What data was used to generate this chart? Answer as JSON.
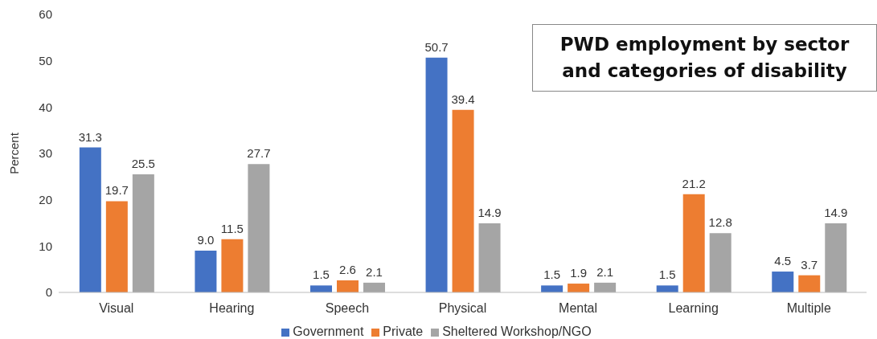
{
  "chart_data": {
    "type": "bar",
    "title": "PWD employment by sector and categories of disability",
    "ylabel": "Percent",
    "categories": [
      "Visual",
      "Hearing",
      "Speech",
      "Physical",
      "Mental",
      "Learning",
      "Multiple"
    ],
    "series": [
      {
        "name": "Government",
        "color": "#4472c4",
        "values": [
          31.3,
          9.0,
          1.5,
          50.7,
          1.5,
          1.5,
          4.5
        ],
        "value_labels": [
          "31.3",
          "9.0",
          "1.5",
          "50.7",
          "1.5",
          "1.5",
          "4.5"
        ]
      },
      {
        "name": "Private",
        "color": "#ed7d31",
        "values": [
          19.7,
          11.5,
          2.6,
          39.4,
          1.9,
          21.2,
          3.7
        ],
        "value_labels": [
          "19.7",
          "11.5",
          "2.6",
          "39.4",
          "1.9",
          "21.2",
          "3.7"
        ]
      },
      {
        "name": "Sheltered Workshop/NGO",
        "color": "#a5a5a5",
        "values": [
          25.5,
          27.7,
          2.1,
          14.9,
          2.1,
          12.8,
          14.9
        ],
        "value_labels": [
          "25.5",
          "27.7",
          "2.1",
          "14.9",
          "2.1",
          "12.8",
          "14.9"
        ]
      }
    ],
    "ylim": [
      0,
      60
    ],
    "yticks": [
      0,
      10,
      20,
      30,
      40,
      50,
      60
    ],
    "grid": false,
    "legend": "bottom"
  }
}
